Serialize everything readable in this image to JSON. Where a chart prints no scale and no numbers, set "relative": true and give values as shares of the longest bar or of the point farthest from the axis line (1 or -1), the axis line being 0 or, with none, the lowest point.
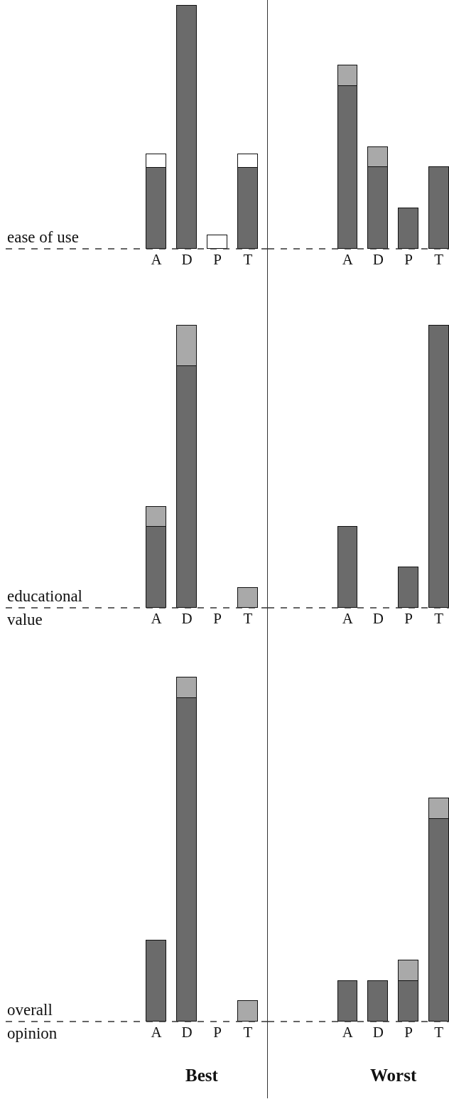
{
  "chart_data": [
    {
      "type": "bar",
      "stacked": true,
      "relative": true,
      "categories": [
        "A",
        "D",
        "P",
        "T"
      ],
      "annotations": [
        "ease of use"
      ],
      "series": [
        {
          "color": "#6b6b6b",
          "values": [
            0.333,
            1,
            0,
            0.333
          ]
        },
        {
          "color": "#ffffff",
          "values": [
            0.056,
            0,
            0.056,
            0.056
          ]
        }
      ]
    },
    {
      "type": "bar",
      "stacked": true,
      "relative": true,
      "categories": [
        "A",
        "D",
        "P",
        "T"
      ],
      "series": [
        {
          "color": "#6b6b6b",
          "values": [
            0.889,
            0.444,
            0.222,
            0.444
          ]
        },
        {
          "color": "#a9a9a9",
          "values": [
            0.111,
            0.111,
            0,
            0
          ]
        }
      ]
    },
    {
      "type": "bar",
      "stacked": true,
      "relative": true,
      "categories": [
        "A",
        "D",
        "P",
        "T"
      ],
      "annotations": [
        "educational value"
      ],
      "series": [
        {
          "color": "#6b6b6b",
          "values": [
            0.286,
            0.857,
            0,
            0
          ]
        },
        {
          "color": "#a9a9a9",
          "values": [
            0.071,
            0.143,
            0,
            0.071
          ]
        }
      ]
    },
    {
      "type": "bar",
      "stacked": true,
      "relative": true,
      "categories": [
        "A",
        "D",
        "P",
        "T"
      ],
      "series": [
        {
          "color": "#6b6b6b",
          "values": [
            0.286,
            0,
            0.143,
            1
          ]
        }
      ]
    },
    {
      "type": "bar",
      "stacked": true,
      "relative": true,
      "categories": [
        "A",
        "D",
        "P",
        "T"
      ],
      "annotations": [
        "overall opinion"
      ],
      "xlabel": "Best",
      "series": [
        {
          "color": "#6b6b6b",
          "values": [
            0.235,
            0.941,
            0,
            0
          ]
        },
        {
          "color": "#a9a9a9",
          "values": [
            0,
            0.059,
            0,
            0.059
          ]
        }
      ]
    },
    {
      "type": "bar",
      "stacked": true,
      "relative": true,
      "categories": [
        "A",
        "D",
        "P",
        "T"
      ],
      "xlabel": "Worst",
      "series": [
        {
          "color": "#6b6b6b",
          "values": [
            0.182,
            0.182,
            0.182,
            0.909
          ]
        },
        {
          "color": "#a9a9a9",
          "values": [
            0,
            0,
            0.091,
            0.091
          ]
        }
      ]
    }
  ]
}
